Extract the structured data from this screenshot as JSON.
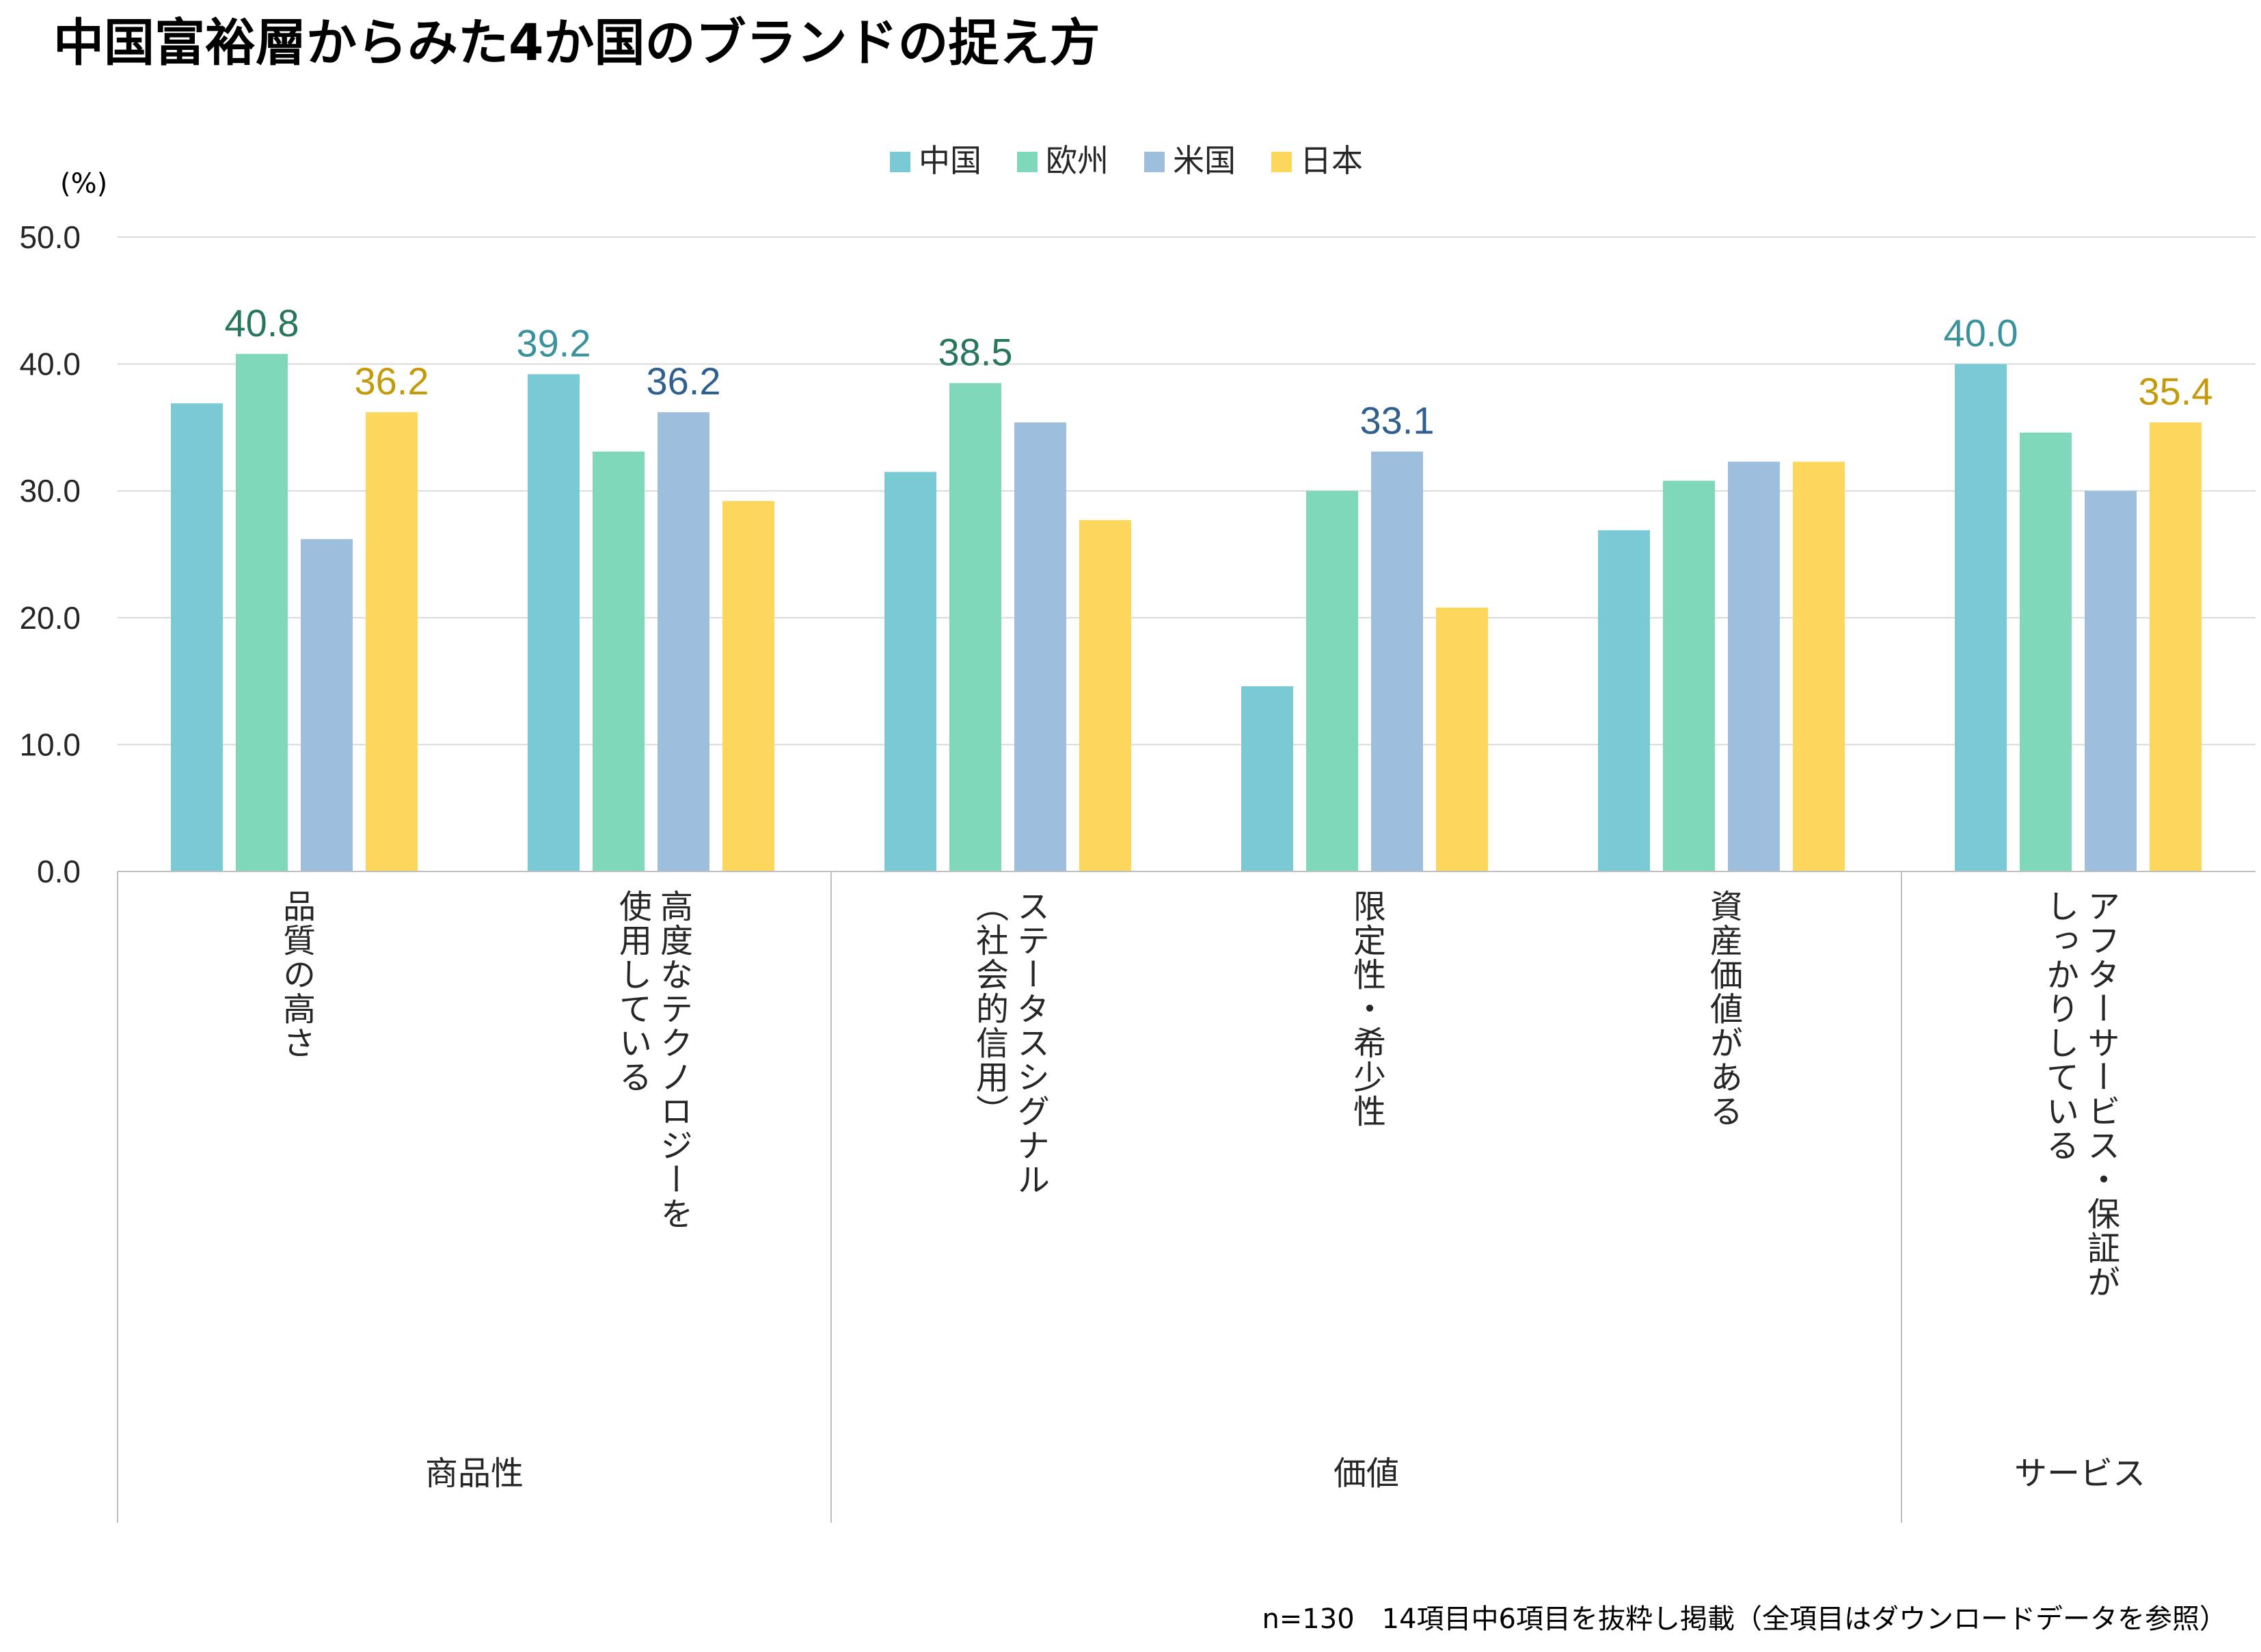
{
  "title": "中国富裕層からみた4か国のブランドの捉え方",
  "footnote": "n=130　14項目中6項目を抜粋し掲載（全項目はダウンロードデータを参照）",
  "colors": {
    "中国": "#7ACAD6",
    "欧州": "#7FD8BA",
    "米国": "#9EBEDE",
    "日本": "#FDD75C",
    "label_中国": "#3A929C",
    "label_欧州": "#27775A",
    "label_米国": "#2F5F8F",
    "label_日本": "#C49A0A",
    "grid": "#D9D9D9",
    "axis": "#BFBFBF",
    "text": "#262626"
  },
  "chart_data": {
    "type": "bar",
    "title": "中国富裕層からみた4か国のブランドの捉え方",
    "ylabel": "(%)",
    "ylim": [
      0,
      50
    ],
    "yticks": [
      "0.0",
      "10.0",
      "20.0",
      "30.0",
      "40.0",
      "50.0"
    ],
    "legend_position": "top-center",
    "grid": true,
    "categories": [
      [
        "品質の高さ"
      ],
      [
        "高度なテクノロジーを",
        "使用している"
      ],
      [
        "ステータスシグナル",
        "（社会的信用）"
      ],
      [
        "限定性・希少性"
      ],
      [
        "資産価値がある"
      ],
      [
        "アフターサービス・保証が",
        "しっかりしている"
      ]
    ],
    "groups": [
      {
        "name": "商品性",
        "span": [
          0,
          1
        ]
      },
      {
        "name": "価値",
        "span": [
          2,
          4
        ]
      },
      {
        "name": "サービス",
        "span": [
          5,
          5
        ]
      }
    ],
    "series": [
      {
        "name": "中国",
        "values": [
          36.9,
          39.2,
          31.5,
          14.6,
          26.9,
          40.0
        ]
      },
      {
        "name": "欧州",
        "values": [
          40.8,
          33.1,
          38.5,
          30.0,
          30.8,
          34.6
        ]
      },
      {
        "name": "米国",
        "values": [
          26.2,
          36.2,
          35.4,
          33.1,
          32.3,
          30.0
        ]
      },
      {
        "name": "日本",
        "values": [
          36.2,
          29.2,
          27.7,
          20.8,
          32.3,
          35.4
        ]
      }
    ],
    "data_labels": [
      {
        "category": 0,
        "series": "欧州",
        "text": "40.8"
      },
      {
        "category": 0,
        "series": "日本",
        "text": "36.2"
      },
      {
        "category": 1,
        "series": "中国",
        "text": "39.2"
      },
      {
        "category": 1,
        "series": "米国",
        "text": "36.2"
      },
      {
        "category": 2,
        "series": "欧州",
        "text": "38.5"
      },
      {
        "category": 3,
        "series": "米国",
        "text": "33.1"
      },
      {
        "category": 5,
        "series": "中国",
        "text": "40.0"
      },
      {
        "category": 5,
        "series": "日本",
        "text": "35.4"
      }
    ]
  }
}
